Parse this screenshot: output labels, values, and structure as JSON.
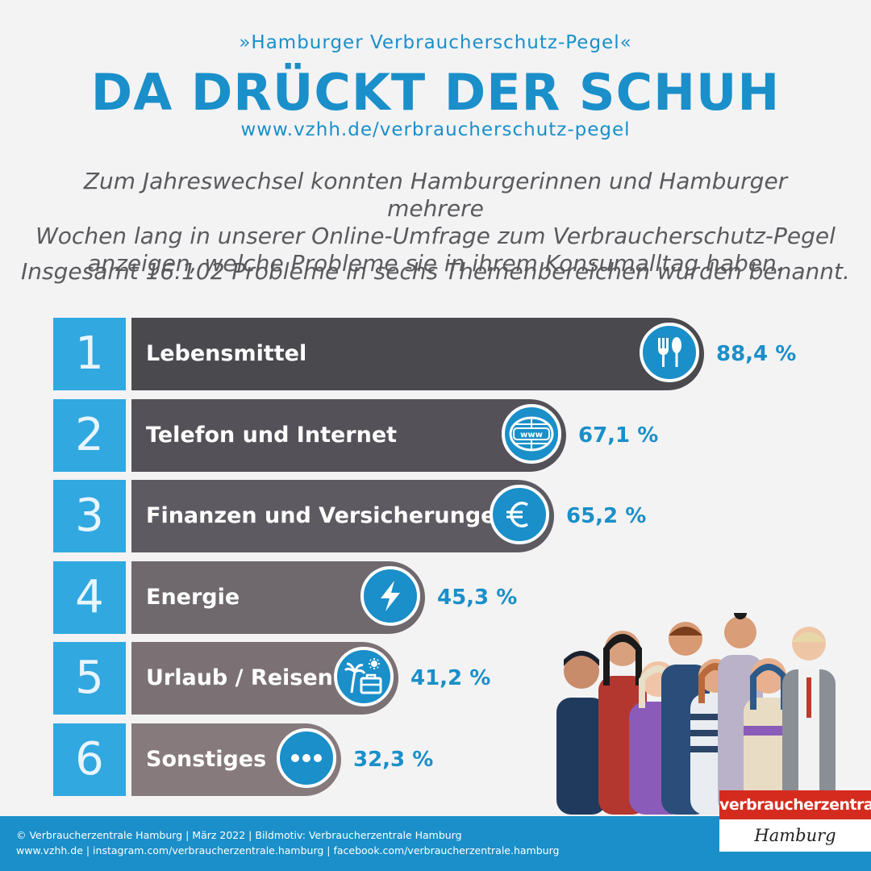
{
  "header": {
    "subtitle": "»Hamburger Verbraucherschutz-Pegel«",
    "title": "DA DRÜCKT DER SCHUH",
    "url": "www.vzhh.de/verbraucherschutz-pegel"
  },
  "intro": {
    "line1": "Zum Jahreswechsel konnten Hamburgerinnen und Hamburger mehrere",
    "line2": "Wochen lang in unserer Online-Umfrage zum Verbraucherschutz-Pegel",
    "line3": "anzeigen, welche Probleme sie in ihrem Konsumalltag haben.",
    "total": "Insgesamt 16.102 Probleme in sechs Themenbereichen wurden benannt."
  },
  "chart_data": {
    "type": "bar",
    "orientation": "horizontal",
    "unit": "%",
    "categories": [
      "Lebensmittel",
      "Telefon und Internet",
      "Finanzen und Versicherungen",
      "Energie",
      "Urlaub / Reisen",
      "Sonstiges"
    ],
    "values": [
      88.4,
      67.1,
      65.2,
      45.3,
      41.2,
      32.3
    ],
    "ranks": [
      "1",
      "2",
      "3",
      "4",
      "5",
      "6"
    ],
    "value_labels": [
      "88,4 %",
      "67,1 %",
      "65,2 %",
      "45,3 %",
      "41,2 %",
      "32,3 %"
    ],
    "icons": [
      "cutlery-icon",
      "www-globe-icon",
      "euro-icon",
      "lightning-icon",
      "beach-suitcase-icon",
      "more-dots-icon"
    ],
    "bar_colors": [
      "#4a494e",
      "#545258",
      "#5e5a62",
      "#6f686d",
      "#7b7175",
      "#877a7c"
    ]
  },
  "colors": {
    "accent": "#1a8fc9",
    "rank_box": "#31a8e0",
    "logo_red": "#d52b1e"
  },
  "footer": {
    "line1": "© Verbraucherzentrale Hamburg | März 2022 | Bildmotiv: Verbraucherzentrale Hamburg",
    "line2": "www.vzhh.de | instagram.com/verbraucherzentrale.hamburg | facebook.com/verbraucherzentrale.hamburg"
  },
  "logo": {
    "top": "verbraucherzentrale",
    "bottom": "Hamburg"
  }
}
